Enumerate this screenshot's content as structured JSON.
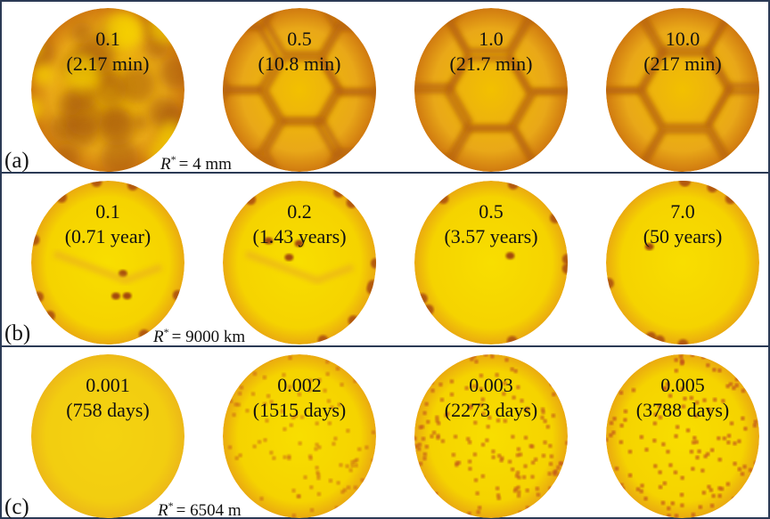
{
  "panels": [
    {
      "label": "(a)",
      "radius": {
        "symbol": "R",
        "sup": "*",
        "value": "= 4 mm"
      },
      "snapshots": [
        {
          "time": "0.1",
          "real_time": "(2.17 min)"
        },
        {
          "time": "0.5",
          "real_time": "(10.8 min)"
        },
        {
          "time": "1.0",
          "real_time": "(21.7 min)"
        },
        {
          "time": "10.0",
          "real_time": "(217 min)"
        }
      ]
    },
    {
      "label": "(b)",
      "radius": {
        "symbol": "R",
        "sup": "*",
        "value": "= 9000 km"
      },
      "snapshots": [
        {
          "time": "0.1",
          "real_time": "(0.71 year)"
        },
        {
          "time": "0.2",
          "real_time": "(1.43 years)"
        },
        {
          "time": "0.5",
          "real_time": "(3.57 years)"
        },
        {
          "time": "7.0",
          "real_time": "(50 years)"
        }
      ]
    },
    {
      "label": "(c)",
      "radius": {
        "symbol": "R",
        "sup": "*",
        "value": "= 6504 m"
      },
      "snapshots": [
        {
          "time": "0.001",
          "real_time": "(758 days)"
        },
        {
          "time": "0.002",
          "real_time": "(1515 days)"
        },
        {
          "time": "0.003",
          "real_time": "(2273 days)"
        },
        {
          "time": "0.005",
          "real_time": "(3788 days)"
        }
      ]
    }
  ]
}
